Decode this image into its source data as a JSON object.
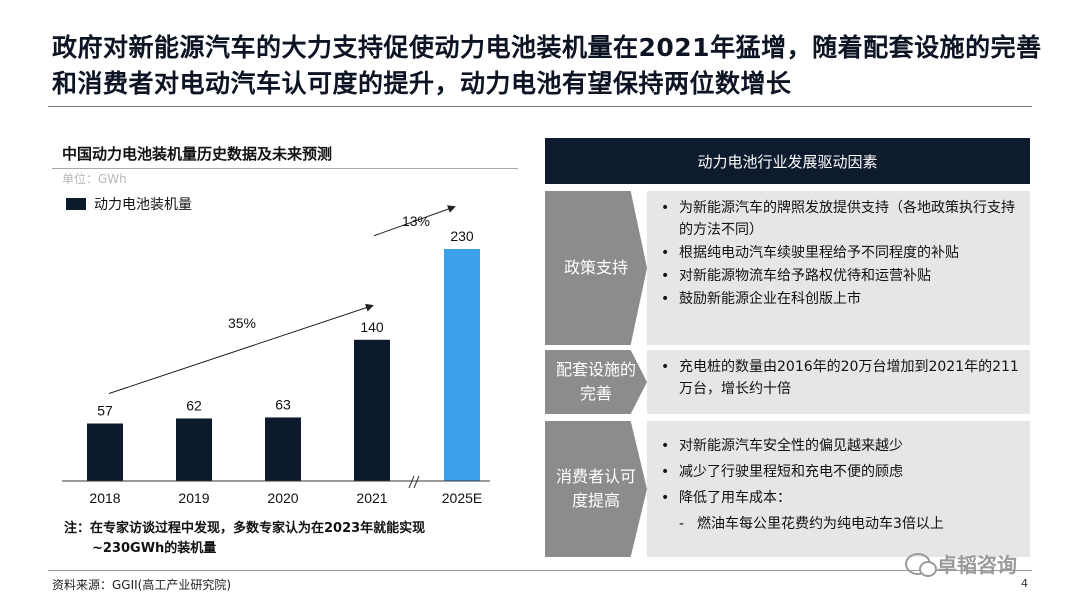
{
  "title": "政府对新能源汽车的大力支持促使动力电池装机量在2021年猛增，随着配套设施的完善和消费者对电动汽车认可度的提升，动力电池有望保持两位数增长",
  "chart": {
    "heading": "中国动力电池装机量历史数据及未来预测",
    "unit": "单位：GWh",
    "legend_label": "动力电池装机量"
  },
  "chart_data": {
    "type": "bar",
    "categories": [
      "2018",
      "2019",
      "2020",
      "2021",
      "2025E"
    ],
    "values": [
      57,
      62,
      63,
      140,
      230
    ],
    "series": [
      {
        "name": "动力电池装机量",
        "values": [
          57,
          62,
          63,
          140,
          230
        ]
      }
    ],
    "colors": [
      "#0d1a2c",
      "#0d1a2c",
      "#0d1a2c",
      "#0d1a2c",
      "#3aa0e8"
    ],
    "growth_annotations": [
      {
        "label": "35%",
        "from": "2018",
        "to": "2021"
      },
      {
        "label": "13%",
        "from": "2021",
        "to": "2025E"
      }
    ],
    "axis_break": "between 2021 and 2025E",
    "ylim": [
      0,
      230
    ]
  },
  "note": {
    "line1": "注：在专家访谈过程中发现，多数专家认为在2023年就能实现",
    "line2": "~230GWh的装机量"
  },
  "panel": {
    "header": "动力电池行业发展驱动因素",
    "rows": [
      {
        "label": "政策支持",
        "items": [
          "为新能源汽车的牌照发放提供支持（各地政策执行支持的方法不同）",
          "根据纯电动汽车续驶里程给予不同程度的补贴",
          "对新能源物流车给予路权优待和运营补贴",
          "鼓励新能源企业在科创版上市"
        ]
      },
      {
        "label": "配套设施的完善",
        "items": [
          "充电桩的数量由2016年的20万台增加到2021年的211万台，增长约十倍"
        ]
      },
      {
        "label": "消费者认可度提高",
        "items": [
          "对新能源汽车安全性的偏见越来越少",
          "减少了行驶里程短和充电不便的顾虑",
          "降低了用车成本："
        ],
        "subitem": "燃油车每公里花费约为纯电动车3倍以上"
      }
    ]
  },
  "source": "资料来源：GGII(高工产业研究院)",
  "page_number": "4",
  "watermark": "卓韬咨询",
  "colors": {
    "navy": "#0e1b2e",
    "accent_blue": "#3aa0e8",
    "label_gray": "#8c8c8c",
    "box_gray": "#e6e6e6"
  }
}
